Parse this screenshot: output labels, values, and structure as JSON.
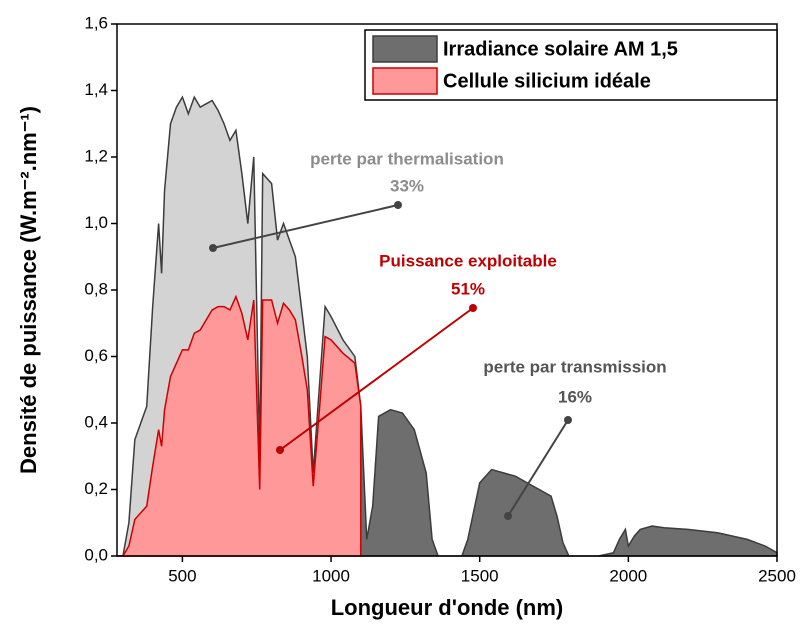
{
  "chart_data": {
    "type": "area",
    "x_label": "Longueur d'onde (nm)",
    "y_label": "Densité de puissance (W.m⁻².nm⁻¹)",
    "x": [
      280,
      300,
      320,
      340,
      360,
      380,
      400,
      420,
      430,
      440,
      460,
      480,
      500,
      520,
      540,
      560,
      580,
      600,
      620,
      640,
      660,
      680,
      700,
      720,
      740,
      760,
      770,
      800,
      820,
      840,
      860,
      880,
      900,
      920,
      940,
      960,
      980,
      1000,
      1040,
      1080,
      1100,
      1120,
      1140,
      1160,
      1200,
      1240,
      1280,
      1320,
      1340,
      1360,
      1400,
      1440,
      1460,
      1500,
      1540,
      1580,
      1620,
      1660,
      1700,
      1740,
      1760,
      1780,
      1800,
      1850,
      1900,
      1950,
      1970,
      1990,
      2000,
      2020,
      2040,
      2080,
      2120,
      2200,
      2300,
      2400,
      2460,
      2500
    ],
    "series": [
      {
        "name": "Irradiance solaire AM 1,5",
        "color": "#6e6e6e",
        "light_color": "#d3d3d3",
        "line_color": "#3c3c3c",
        "values": [
          0,
          0,
          0.1,
          0.35,
          0.4,
          0.45,
          0.75,
          1.0,
          0.85,
          1.1,
          1.3,
          1.35,
          1.38,
          1.33,
          1.38,
          1.35,
          1.36,
          1.37,
          1.34,
          1.3,
          1.25,
          1.28,
          1.15,
          1.0,
          1.2,
          0.3,
          1.15,
          1.12,
          0.95,
          1.0,
          0.95,
          0.9,
          0.75,
          0.6,
          0.25,
          0.5,
          0.75,
          0.72,
          0.65,
          0.6,
          0.45,
          0.05,
          0.15,
          0.42,
          0.44,
          0.43,
          0.38,
          0.25,
          0.05,
          0,
          0,
          0,
          0.05,
          0.22,
          0.26,
          0.25,
          0.24,
          0.22,
          0.2,
          0.18,
          0.12,
          0.04,
          0,
          0,
          0,
          0.01,
          0.05,
          0.08,
          0.03,
          0.06,
          0.08,
          0.09,
          0.085,
          0.08,
          0.07,
          0.05,
          0.03,
          0.01
        ]
      },
      {
        "name": "Cellule silicium idéale",
        "color": "#ff9999",
        "line_color": "#cc0000",
        "values": [
          0,
          0,
          0.03,
          0.11,
          0.13,
          0.15,
          0.27,
          0.38,
          0.33,
          0.44,
          0.54,
          0.58,
          0.62,
          0.62,
          0.67,
          0.68,
          0.71,
          0.74,
          0.75,
          0.75,
          0.74,
          0.78,
          0.73,
          0.65,
          0.77,
          0.2,
          0.77,
          0.77,
          0.7,
          0.76,
          0.74,
          0.71,
          0.61,
          0.5,
          0.21,
          0.43,
          0.66,
          0.65,
          0.61,
          0.58,
          0.45,
          null,
          null,
          null,
          null,
          null,
          null,
          null,
          null,
          null,
          null,
          null,
          null,
          null,
          null,
          null,
          null,
          null,
          null,
          null,
          null,
          null,
          null,
          null,
          null,
          null,
          null,
          null,
          null,
          null,
          null,
          null,
          null,
          null,
          null,
          null,
          null,
          null
        ]
      }
    ],
    "xlim": [
      280,
      2500
    ],
    "xticks": [
      500,
      1000,
      1500,
      2000,
      2500
    ],
    "ylim": [
      0,
      1.6
    ],
    "yticks": [
      {
        "value": 0,
        "label": "0,0"
      },
      {
        "value": 0.2,
        "label": "0,2"
      },
      {
        "value": 0.4,
        "label": "0,4"
      },
      {
        "value": 0.6,
        "label": "0,6"
      },
      {
        "value": 0.8,
        "label": "0,8"
      },
      {
        "value": 1.0,
        "label": "1,0"
      },
      {
        "value": 1.2,
        "label": "1,2"
      },
      {
        "value": 1.4,
        "label": "1,4"
      },
      {
        "value": 1.6,
        "label": "1,6"
      }
    ],
    "legend": "top-right",
    "annotations": [
      {
        "text": "perte par thermalisation",
        "value": 33,
        "value_label": "33%",
        "color": "#8c8c8c"
      },
      {
        "text": "Puissance exploitable",
        "value": 51,
        "value_label": "51%",
        "color": "#c00000"
      },
      {
        "text": "perte par transmission",
        "value": 16,
        "value_label": "16%",
        "color": "#555555"
      }
    ]
  }
}
